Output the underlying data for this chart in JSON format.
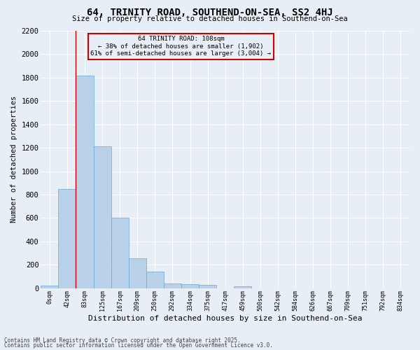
{
  "title": "64, TRINITY ROAD, SOUTHEND-ON-SEA, SS2 4HJ",
  "subtitle": "Size of property relative to detached houses in Southend-on-Sea",
  "xlabel": "Distribution of detached houses by size in Southend-on-Sea",
  "ylabel": "Number of detached properties",
  "bar_color": "#b8d0e8",
  "bar_edge_color": "#6aaad4",
  "background_color": "#e8eef5",
  "grid_color": "#ffffff",
  "annotation_box_color": "#cc0000",
  "vline_color": "#cc0000",
  "bin_labels": [
    "0sqm",
    "42sqm",
    "83sqm",
    "125sqm",
    "167sqm",
    "209sqm",
    "250sqm",
    "292sqm",
    "334sqm",
    "375sqm",
    "417sqm",
    "459sqm",
    "500sqm",
    "542sqm",
    "584sqm",
    "626sqm",
    "667sqm",
    "709sqm",
    "751sqm",
    "792sqm",
    "834sqm"
  ],
  "bar_heights": [
    20,
    845,
    1820,
    1210,
    600,
    255,
    140,
    40,
    35,
    25,
    0,
    15,
    0,
    0,
    0,
    0,
    0,
    0,
    0,
    0,
    0
  ],
  "vline_x_index": 2,
  "annotation_line1": "64 TRINITY ROAD: 108sqm",
  "annotation_line2": "← 38% of detached houses are smaller (1,902)",
  "annotation_line3": "61% of semi-detached houses are larger (3,004) →",
  "footer_line1": "Contains HM Land Registry data © Crown copyright and database right 2025.",
  "footer_line2": "Contains public sector information licensed under the Open Government Licence v3.0.",
  "ylim": [
    0,
    2200
  ],
  "yticks": [
    0,
    200,
    400,
    600,
    800,
    1000,
    1200,
    1400,
    1600,
    1800,
    2000,
    2200
  ]
}
